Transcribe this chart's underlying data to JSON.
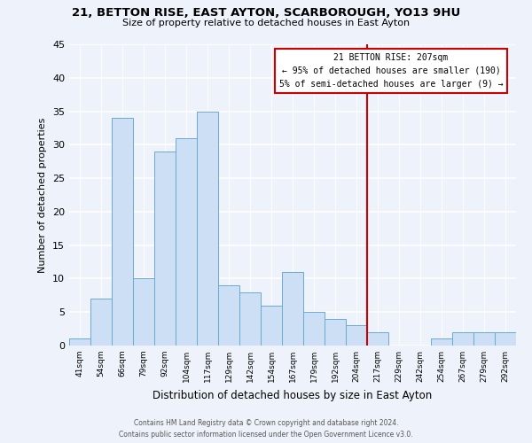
{
  "title": "21, BETTON RISE, EAST AYTON, SCARBOROUGH, YO13 9HU",
  "subtitle": "Size of property relative to detached houses in East Ayton",
  "xlabel": "Distribution of detached houses by size in East Ayton",
  "ylabel": "Number of detached properties",
  "bar_labels": [
    "41sqm",
    "54sqm",
    "66sqm",
    "79sqm",
    "92sqm",
    "104sqm",
    "117sqm",
    "129sqm",
    "142sqm",
    "154sqm",
    "167sqm",
    "179sqm",
    "192sqm",
    "204sqm",
    "217sqm",
    "229sqm",
    "242sqm",
    "254sqm",
    "267sqm",
    "279sqm",
    "292sqm"
  ],
  "bar_values": [
    1,
    7,
    34,
    10,
    29,
    31,
    35,
    9,
    8,
    6,
    11,
    5,
    4,
    3,
    2,
    0,
    0,
    1,
    2,
    2,
    2
  ],
  "bar_color": "#ccdff5",
  "bar_edge_color": "#6aaad4",
  "annotation_line_color": "#cc0000",
  "annotation_box_text": "21 BETTON RISE: 207sqm\n← 95% of detached houses are smaller (190)\n5% of semi-detached houses are larger (9) →",
  "vline_x_index": 13,
  "ylim": [
    0,
    45
  ],
  "yticks": [
    0,
    5,
    10,
    15,
    20,
    25,
    30,
    35,
    40,
    45
  ],
  "footer_line1": "Contains HM Land Registry data © Crown copyright and database right 2024.",
  "footer_line2": "Contains public sector information licensed under the Open Government Licence v3.0.",
  "background_color": "#eef2fa"
}
